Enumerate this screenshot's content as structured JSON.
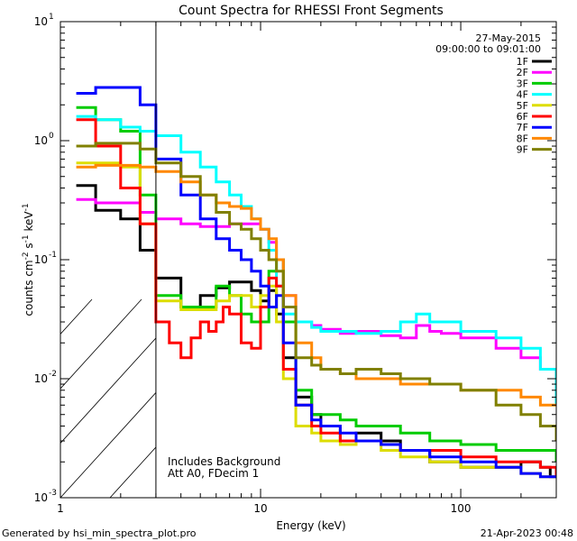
{
  "chart_data": {
    "type": "line",
    "title": "Count Spectra for RHESSI Front Segments",
    "xlabel": "Energy (keV)",
    "ylabel_parts": [
      "counts cm",
      "-2",
      " s",
      "-1",
      " keV",
      "-1"
    ],
    "xscale": "log",
    "yscale": "log",
    "xlim": [
      1,
      300
    ],
    "ylim": [
      0.001,
      10
    ],
    "x_ticks": [
      {
        "value": 1,
        "label": "1"
      },
      {
        "value": 10,
        "label": "10"
      },
      {
        "value": 100,
        "label": "100"
      }
    ],
    "y_ticks": [
      {
        "value": 0.001,
        "base": "10",
        "exp": "-3"
      },
      {
        "value": 0.01,
        "base": "10",
        "exp": "-2"
      },
      {
        "value": 0.1,
        "base": "10",
        "exp": "-1"
      },
      {
        "value": 1,
        "base": "10",
        "exp": "0"
      },
      {
        "value": 10,
        "base": "10",
        "exp": "1"
      }
    ],
    "date": "27-May-2015",
    "time_range": "09:00:00 to 09:01:00",
    "hatched_region_max_keV": 3,
    "annotations": [
      "Includes Background",
      "Att A0, FDecim 1"
    ],
    "series": [
      {
        "name": "1F",
        "color": "#000000",
        "x": [
          1.2,
          1.5,
          2,
          2.5,
          3,
          4,
          5,
          6,
          7,
          8,
          9,
          10,
          11,
          12,
          13,
          15,
          18,
          20,
          25,
          30,
          40,
          50,
          70,
          100,
          150,
          200,
          250,
          280
        ],
        "y": [
          0.42,
          0.26,
          0.22,
          0.12,
          0.07,
          0.04,
          0.05,
          0.058,
          0.065,
          0.065,
          0.055,
          0.045,
          0.055,
          0.035,
          0.015,
          0.007,
          0.005,
          0.004,
          0.003,
          0.0035,
          0.003,
          0.0025,
          0.002,
          0.0018,
          0.0018,
          0.002,
          0.0018,
          0.0015
        ]
      },
      {
        "name": "2F",
        "color": "#ff00ff",
        "x": [
          1.2,
          1.5,
          2,
          2.5,
          3,
          4,
          5,
          6,
          7,
          8,
          9,
          10,
          11,
          12,
          13,
          15,
          18,
          20,
          25,
          30,
          40,
          50,
          60,
          70,
          80,
          100,
          150,
          200,
          250,
          300
        ],
        "y": [
          0.32,
          0.3,
          0.3,
          0.25,
          0.22,
          0.2,
          0.19,
          0.19,
          0.2,
          0.2,
          0.2,
          0.18,
          0.14,
          0.1,
          0.05,
          0.03,
          0.028,
          0.026,
          0.024,
          0.025,
          0.023,
          0.022,
          0.028,
          0.025,
          0.024,
          0.022,
          0.018,
          0.015,
          0.012,
          0.01
        ]
      },
      {
        "name": "3F",
        "color": "#00cc00",
        "x": [
          1.2,
          1.5,
          2,
          2.5,
          3,
          4,
          5,
          6,
          7,
          8,
          9,
          10,
          11,
          12,
          13,
          15,
          18,
          20,
          25,
          30,
          40,
          50,
          70,
          100,
          150,
          200,
          250,
          300
        ],
        "y": [
          1.9,
          1.5,
          1.2,
          0.35,
          0.05,
          0.04,
          0.04,
          0.06,
          0.05,
          0.035,
          0.03,
          0.03,
          0.08,
          0.1,
          0.03,
          0.008,
          0.005,
          0.005,
          0.0045,
          0.004,
          0.004,
          0.0035,
          0.003,
          0.0028,
          0.0025,
          0.0025,
          0.0025,
          0.002
        ]
      },
      {
        "name": "4F",
        "color": "#00ffff",
        "x": [
          1.2,
          1.5,
          2,
          2.5,
          3,
          4,
          5,
          6,
          7,
          8,
          9,
          10,
          11,
          12,
          13,
          15,
          18,
          20,
          25,
          30,
          40,
          50,
          60,
          70,
          80,
          100,
          150,
          200,
          250,
          300
        ],
        "y": [
          1.6,
          1.5,
          1.3,
          1.2,
          1.1,
          0.8,
          0.6,
          0.45,
          0.35,
          0.28,
          0.22,
          0.18,
          0.12,
          0.06,
          0.035,
          0.03,
          0.027,
          0.025,
          0.025,
          0.024,
          0.025,
          0.03,
          0.035,
          0.03,
          0.03,
          0.025,
          0.022,
          0.018,
          0.012,
          0.006
        ]
      },
      {
        "name": "5F",
        "color": "#dddd00",
        "x": [
          1.2,
          1.5,
          2,
          2.5,
          3,
          4,
          5,
          6,
          7,
          8,
          9,
          10,
          11,
          12,
          13,
          15,
          18,
          20,
          25,
          30,
          40,
          50,
          70,
          100,
          150,
          200,
          250,
          300
        ],
        "y": [
          0.65,
          0.65,
          0.6,
          0.2,
          0.045,
          0.038,
          0.038,
          0.045,
          0.05,
          0.05,
          0.04,
          0.05,
          0.06,
          0.03,
          0.01,
          0.004,
          0.0035,
          0.003,
          0.0028,
          0.003,
          0.0025,
          0.0022,
          0.002,
          0.0018,
          0.0018,
          0.0016,
          0.0015,
          0.0015
        ]
      },
      {
        "name": "6F",
        "color": "#ff0000",
        "x": [
          1.2,
          1.5,
          2,
          2.5,
          3,
          3.5,
          4,
          4.5,
          5,
          5.5,
          6,
          6.5,
          7,
          8,
          9,
          10,
          11,
          12,
          13,
          15,
          18,
          20,
          25,
          30,
          40,
          50,
          70,
          100,
          150,
          200,
          250,
          300
        ],
        "y": [
          1.5,
          0.9,
          0.4,
          0.2,
          0.03,
          0.02,
          0.015,
          0.022,
          0.03,
          0.025,
          0.03,
          0.04,
          0.035,
          0.02,
          0.018,
          0.04,
          0.07,
          0.06,
          0.012,
          0.006,
          0.004,
          0.0035,
          0.003,
          0.003,
          0.0028,
          0.0025,
          0.0025,
          0.0022,
          0.002,
          0.002,
          0.0018,
          0.0015
        ]
      },
      {
        "name": "7F",
        "color": "#0000ff",
        "x": [
          1.2,
          1.5,
          2,
          2.5,
          3,
          4,
          5,
          6,
          7,
          8,
          9,
          10,
          11,
          12,
          13,
          15,
          18,
          20,
          25,
          30,
          40,
          50,
          70,
          100,
          150,
          200,
          250,
          300
        ],
        "y": [
          2.5,
          2.8,
          2.8,
          2.0,
          0.7,
          0.35,
          0.22,
          0.15,
          0.12,
          0.1,
          0.08,
          0.06,
          0.04,
          0.05,
          0.02,
          0.006,
          0.0045,
          0.004,
          0.0035,
          0.003,
          0.0028,
          0.0025,
          0.0022,
          0.002,
          0.0018,
          0.0016,
          0.0015,
          0.0015
        ]
      },
      {
        "name": "8F",
        "color": "#ff8800",
        "x": [
          1.2,
          1.5,
          2,
          2.5,
          3,
          4,
          5,
          6,
          7,
          8,
          9,
          10,
          11,
          12,
          13,
          15,
          18,
          20,
          25,
          30,
          40,
          50,
          70,
          100,
          150,
          200,
          250,
          300
        ],
        "y": [
          0.6,
          0.62,
          0.62,
          0.6,
          0.55,
          0.45,
          0.35,
          0.3,
          0.28,
          0.27,
          0.22,
          0.18,
          0.15,
          0.1,
          0.05,
          0.02,
          0.015,
          0.012,
          0.011,
          0.01,
          0.01,
          0.009,
          0.009,
          0.008,
          0.008,
          0.007,
          0.006,
          0.006
        ]
      },
      {
        "name": "9F",
        "color": "#808000",
        "x": [
          1.2,
          1.5,
          2,
          2.5,
          3,
          4,
          5,
          6,
          7,
          8,
          9,
          10,
          11,
          12,
          13,
          15,
          18,
          20,
          25,
          30,
          40,
          50,
          70,
          100,
          150,
          200,
          250,
          300
        ],
        "y": [
          0.9,
          0.95,
          0.95,
          0.85,
          0.65,
          0.5,
          0.35,
          0.25,
          0.2,
          0.18,
          0.15,
          0.12,
          0.1,
          0.08,
          0.04,
          0.015,
          0.013,
          0.012,
          0.011,
          0.012,
          0.011,
          0.01,
          0.009,
          0.008,
          0.006,
          0.005,
          0.004,
          0.003
        ]
      }
    ]
  },
  "footer": {
    "generated_by": "Generated by hsi_min_spectra_plot.pro",
    "timestamp": "21-Apr-2023 00:48"
  }
}
